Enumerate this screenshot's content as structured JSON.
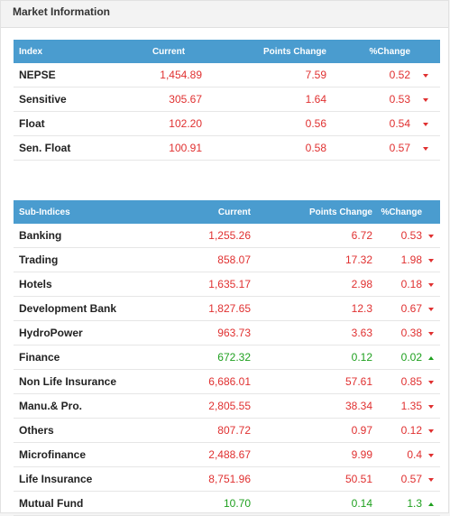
{
  "panel": {
    "title": "Market Information"
  },
  "index_table": {
    "headers": {
      "name": "Index",
      "current": "Current",
      "points": "Points Change",
      "pct": "%Change"
    },
    "rows": [
      {
        "name": "NEPSE",
        "current": "1,454.89",
        "points": "7.59",
        "pct": "0.52",
        "direction": "down"
      },
      {
        "name": "Sensitive",
        "current": "305.67",
        "points": "1.64",
        "pct": "0.53",
        "direction": "down"
      },
      {
        "name": "Float",
        "current": "102.20",
        "points": "0.56",
        "pct": "0.54",
        "direction": "down"
      },
      {
        "name": "Sen. Float",
        "current": "100.91",
        "points": "0.58",
        "pct": "0.57",
        "direction": "down"
      }
    ]
  },
  "subindex_table": {
    "headers": {
      "name": "Sub-Indices",
      "current": "Current",
      "points": "Points Change",
      "pct": "%Change"
    },
    "rows": [
      {
        "name": "Banking",
        "current": "1,255.26",
        "points": "6.72",
        "pct": "0.53",
        "direction": "down"
      },
      {
        "name": "Trading",
        "current": "858.07",
        "points": "17.32",
        "pct": "1.98",
        "direction": "down"
      },
      {
        "name": "Hotels",
        "current": "1,635.17",
        "points": "2.98",
        "pct": "0.18",
        "direction": "down"
      },
      {
        "name": "Development Bank",
        "current": "1,827.65",
        "points": "12.3",
        "pct": "0.67",
        "direction": "down"
      },
      {
        "name": "HydroPower",
        "current": "963.73",
        "points": "3.63",
        "pct": "0.38",
        "direction": "down"
      },
      {
        "name": "Finance",
        "current": "672.32",
        "points": "0.12",
        "pct": "0.02",
        "direction": "up"
      },
      {
        "name": "Non Life Insurance",
        "current": "6,686.01",
        "points": "57.61",
        "pct": "0.85",
        "direction": "down"
      },
      {
        "name": "Manu.& Pro.",
        "current": "2,805.55",
        "points": "38.34",
        "pct": "1.35",
        "direction": "down"
      },
      {
        "name": "Others",
        "current": "807.72",
        "points": "0.97",
        "pct": "0.12",
        "direction": "down"
      },
      {
        "name": "Microfinance",
        "current": "2,488.67",
        "points": "9.99",
        "pct": "0.4",
        "direction": "down"
      },
      {
        "name": "Life Insurance",
        "current": "8,751.96",
        "points": "50.51",
        "pct": "0.57",
        "direction": "down"
      },
      {
        "name": "Mutual Fund",
        "current": "10.70",
        "points": "0.14",
        "pct": "1.3",
        "direction": "up"
      }
    ]
  },
  "colors": {
    "header_bg": "#4a9ccf",
    "down": "#e03030",
    "up": "#1fa01f"
  },
  "icons": {
    "down": "triangle-down-icon",
    "up": "triangle-up-icon"
  }
}
